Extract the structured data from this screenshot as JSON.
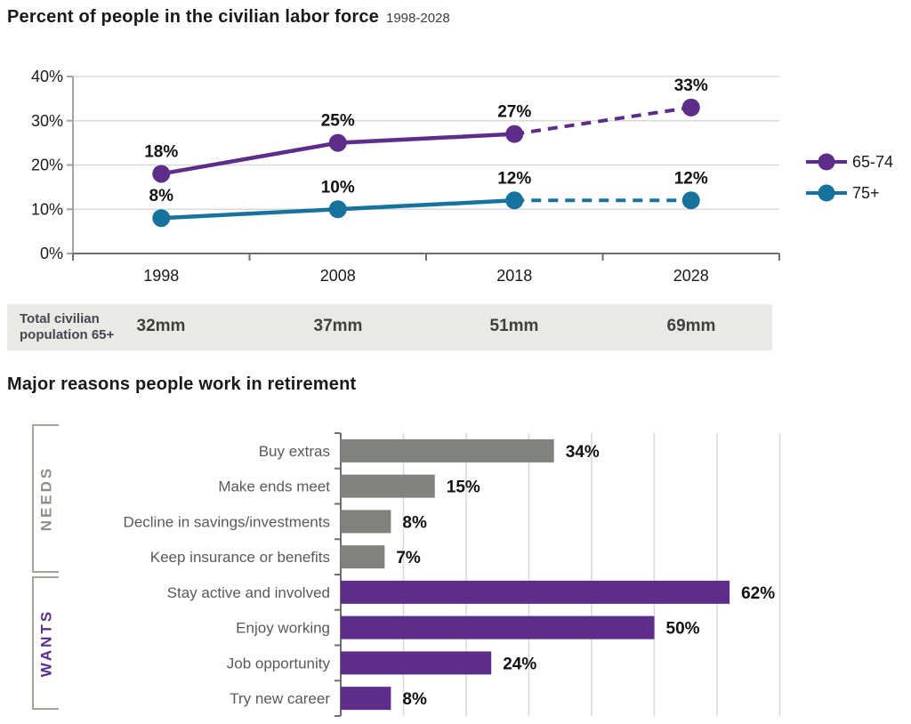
{
  "chart1": {
    "title": "Percent of people in the civilian labor force",
    "subtitle": "1998-2028"
  },
  "population_row": {
    "label_line1": "Total civilian",
    "label_line2": "population 65+",
    "values": [
      "32mm",
      "37mm",
      "51mm",
      "69mm"
    ]
  },
  "chart2": {
    "title": "Major reasons people work in retirement"
  },
  "chart_data": [
    {
      "type": "line",
      "title": "Percent of people in the civilian labor force",
      "subtitle": "1998-2028",
      "categories": [
        "1998",
        "2008",
        "2018",
        "2028"
      ],
      "series": [
        {
          "name": "65-74",
          "color": "#5e2d8a",
          "values": [
            18,
            25,
            27,
            33
          ],
          "labels": [
            "18%",
            "25%",
            "27%",
            "33%"
          ],
          "dashed_from_index": 2
        },
        {
          "name": "75+",
          "color": "#17729d",
          "values": [
            8,
            10,
            12,
            12
          ],
          "labels": [
            "8%",
            "10%",
            "12%",
            "12%"
          ],
          "dashed_from_index": 2
        }
      ],
      "ylim": [
        0,
        40
      ],
      "ytick_step": 10,
      "ytick_labels": [
        "0%",
        "10%",
        "20%",
        "30%",
        "40%"
      ],
      "grid": "horizontal",
      "legend_position": "right"
    },
    {
      "type": "bar",
      "orientation": "horizontal",
      "title": "Major reasons people work in retirement",
      "categories": [
        "Buy extras",
        "Make ends meet",
        "Decline in savings/investments",
        "Keep insurance or benefits",
        "Stay active and involved",
        "Enjoy working",
        "Job opportunity",
        "Try new career"
      ],
      "values": [
        34,
        15,
        8,
        7,
        62,
        50,
        24,
        8
      ],
      "labels": [
        "34%",
        "15%",
        "8%",
        "7%",
        "62%",
        "50%",
        "24%",
        "8%"
      ],
      "group_of": [
        0,
        0,
        0,
        0,
        1,
        1,
        1,
        1
      ],
      "groups": [
        {
          "name": "NEEDS",
          "text_color": "#8f8f88",
          "bar_color": "#7f837c"
        },
        {
          "name": "WANTS",
          "text_color": "#5e2d8a",
          "bar_color": "#5e2d8a"
        }
      ],
      "xlim": [
        0,
        70
      ],
      "grid": "vertical",
      "grid_step": 10
    }
  ],
  "colors": {
    "gridline": "#d9d9d9",
    "axis_light": "#a3a3a3",
    "axis_dark": "#6e6e6e",
    "bracket": "#a5a199",
    "tick_label": "#1a1a1a",
    "category_label": "#595959",
    "value_label": "#111111"
  }
}
